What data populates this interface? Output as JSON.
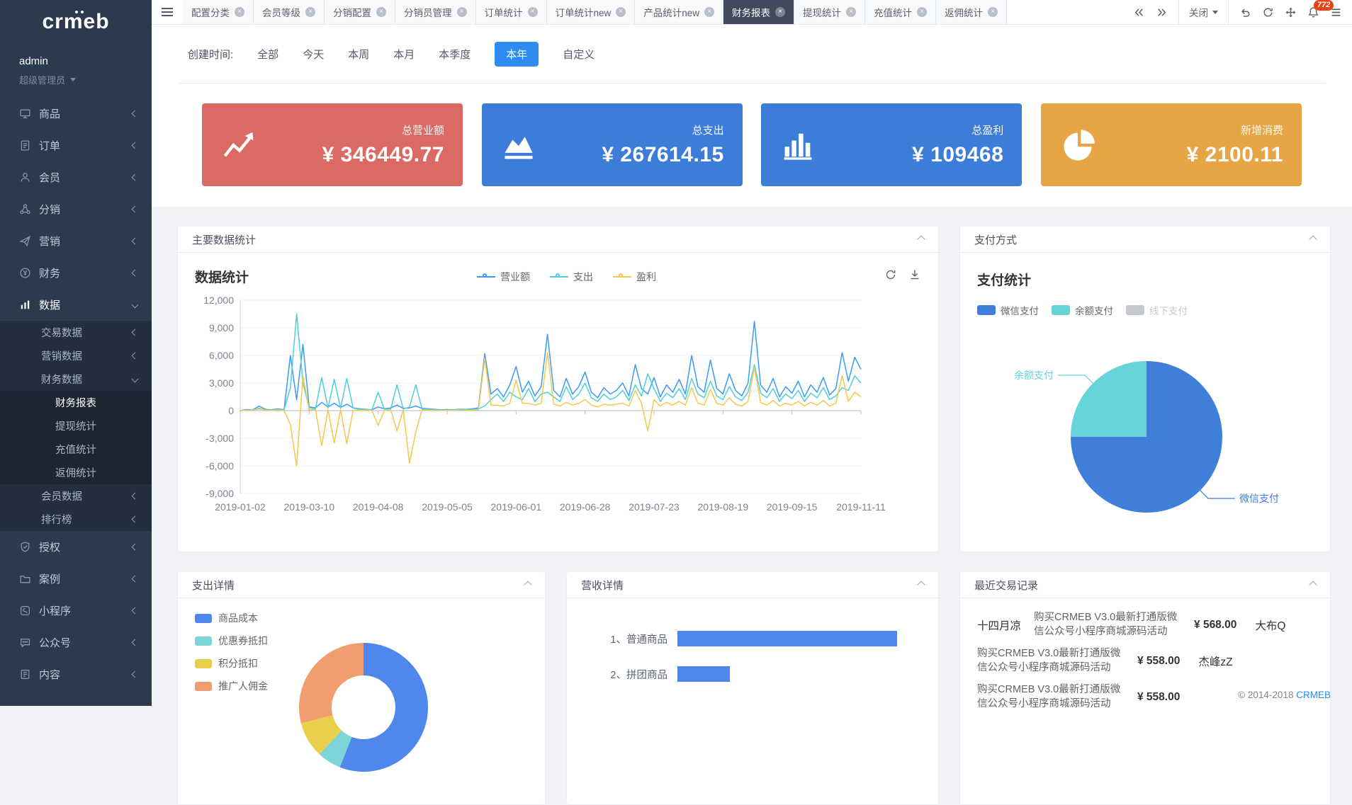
{
  "sidebar": {
    "logo": "crmeb",
    "user": {
      "name": "admin",
      "role": "超级管理员"
    },
    "menu": [
      {
        "label": "商品",
        "icon": "goods-icon",
        "arrow": true
      },
      {
        "label": "订单",
        "icon": "order-icon",
        "arrow": true
      },
      {
        "label": "会员",
        "icon": "member-icon",
        "arrow": true
      },
      {
        "label": "分销",
        "icon": "distribution-icon",
        "arrow": true
      },
      {
        "label": "营销",
        "icon": "marketing-icon",
        "arrow": true
      },
      {
        "label": "财务",
        "icon": "finance-icon",
        "arrow": true
      },
      {
        "label": "数据",
        "icon": "data-icon",
        "arrow": true,
        "active": true,
        "expanded": true,
        "children": [
          {
            "label": "交易数据",
            "arrow": true
          },
          {
            "label": "营销数据",
            "arrow": true
          },
          {
            "label": "财务数据",
            "arrow": true,
            "expanded": true,
            "children": [
              {
                "label": "财务报表",
                "active": true
              },
              {
                "label": "提现统计"
              },
              {
                "label": "充值统计"
              },
              {
                "label": "返佣统计"
              }
            ]
          },
          {
            "label": "会员数据",
            "arrow": true
          },
          {
            "label": "排行榜",
            "arrow": true
          }
        ]
      },
      {
        "label": "授权",
        "icon": "auth-icon",
        "arrow": true
      },
      {
        "label": "案例",
        "icon": "case-icon",
        "arrow": true
      },
      {
        "label": "小程序",
        "icon": "miniprogram-icon",
        "arrow": true
      },
      {
        "label": "公众号",
        "icon": "wechat-icon",
        "arrow": true
      },
      {
        "label": "内容",
        "icon": "content-icon",
        "arrow": true
      }
    ]
  },
  "tabbar": {
    "tabs": [
      {
        "label": "配置分类"
      },
      {
        "label": "会员等级"
      },
      {
        "label": "分销配置"
      },
      {
        "label": "分销员管理"
      },
      {
        "label": "订单统计"
      },
      {
        "label": "订单统计new"
      },
      {
        "label": "产品统计new"
      },
      {
        "label": "财务报表",
        "active": true
      },
      {
        "label": "提现统计"
      },
      {
        "label": "充值统计"
      },
      {
        "label": "返佣统计"
      }
    ],
    "close_label": "关闭",
    "badge": "772",
    "controls": [
      "double-left-arrow-icon",
      "double-right-arrow-icon",
      "close-dropdown",
      "undo-icon",
      "refresh-icon",
      "fullscreen-icon",
      "bell-icon",
      "list-icon"
    ]
  },
  "filters": {
    "label": "创建时间:",
    "options": [
      "全部",
      "今天",
      "本周",
      "本月",
      "本季度",
      "本年",
      "自定义"
    ],
    "active": "本年"
  },
  "stat_cards": [
    {
      "label": "总营业额",
      "value": "¥ 346449.77",
      "color": "#db6a64",
      "icon": "trend-line-icon"
    },
    {
      "label": "总支出",
      "value": "¥ 267614.15",
      "color": "#3d7dda",
      "icon": "area-chart-icon"
    },
    {
      "label": "总盈利",
      "value": "¥ 109468",
      "color": "#3d7dda",
      "icon": "bar-chart-icon"
    },
    {
      "label": "新增消费",
      "value": "¥ 2100.11",
      "color": "#e8a545",
      "icon": "pie-chart-icon"
    }
  ],
  "panels": {
    "main": {
      "title": "主要数据统计",
      "tools": [
        "refresh-icon",
        "download-icon"
      ]
    },
    "payment": {
      "title": "支付方式"
    },
    "expense": {
      "title": "支出详情"
    },
    "revenue": {
      "title": "营收详情"
    },
    "transactions": {
      "title": "最近交易记录",
      "items": [
        {
          "name": "十四月凉",
          "desc": "购买CRMEB V3.0最新打通版微信公众号小程序商城源码活动",
          "price": "¥ 568.00"
        },
        {
          "name": "大布Q",
          "desc": "购买CRMEB V3.0最新打通版微信公众号小程序商城源码活动",
          "price": "¥ 558.00"
        },
        {
          "name": "杰峰zZ",
          "desc": "购买CRMEB V3.0最新打通版微信公众号小程序商城源码活动",
          "price": "¥ 558.00"
        }
      ]
    }
  },
  "chart_data": [
    {
      "id": "data-statistics",
      "type": "line",
      "title": "数据统计",
      "legend_position": "top",
      "ylim": [
        -9000,
        12000
      ],
      "y_ticks": [
        12000,
        9000,
        6000,
        3000,
        0,
        -3000,
        -6000,
        -9000
      ],
      "x_labels": [
        "2019-01-02",
        "2019-03-10",
        "2019-04-08",
        "2019-05-05",
        "2019-06-01",
        "2019-06-28",
        "2019-07-23",
        "2019-08-19",
        "2019-09-15",
        "2019-11-11"
      ],
      "series": [
        {
          "name": "营业额",
          "color": "#3b9bf5",
          "values": [
            0,
            120,
            80,
            500,
            150,
            90,
            200,
            100,
            6000,
            1200,
            7200,
            400,
            300,
            900,
            400,
            800,
            350,
            700,
            300,
            200,
            150,
            100,
            400,
            200,
            300,
            600,
            250,
            300,
            500,
            250,
            200,
            150,
            100,
            120,
            100,
            150,
            120,
            200,
            300,
            6200,
            1800,
            2400,
            1500,
            2800,
            4800,
            2000,
            3200,
            1600,
            2600,
            8300,
            2200,
            1500,
            3500,
            1800,
            2600,
            4200,
            2000,
            1400,
            2500,
            1800,
            2200,
            3000,
            1600,
            5000,
            2400,
            1800,
            3600,
            1500,
            2800,
            2000,
            3400,
            1800,
            6000,
            2600,
            2000,
            5500,
            2400,
            1800,
            4000,
            2200,
            1600,
            3000,
            9700,
            2800,
            2000,
            3500,
            1500,
            2600,
            1900,
            3200,
            1500,
            2800,
            2000,
            3600,
            1700,
            2400,
            6300,
            3200,
            5800,
            4500
          ]
        },
        {
          "name": "支出",
          "color": "#4ed0da",
          "values": [
            0,
            80,
            60,
            200,
            100,
            60,
            120,
            80,
            2500,
            10500,
            3000,
            300,
            200,
            3600,
            300,
            3400,
            250,
            3500,
            280,
            150,
            100,
            80,
            2000,
            150,
            200,
            2800,
            180,
            400,
            2800,
            180,
            150,
            100,
            80,
            90,
            80,
            100,
            90,
            150,
            200,
            500,
            1200,
            1800,
            1000,
            2000,
            1500,
            1200,
            2400,
            1000,
            1800,
            2000,
            1500,
            1000,
            2600,
            1200,
            1800,
            3000,
            1400,
            1000,
            1800,
            1200,
            1500,
            2200,
            1100,
            2800,
            1600,
            4000,
            2400,
            1000,
            1900,
            1400,
            2400,
            1200,
            3500,
            1800,
            1400,
            3200,
            1600,
            1200,
            2600,
            1500,
            1100,
            2000,
            5000,
            1900,
            1400,
            2400,
            1000,
            1800,
            1300,
            2200,
            1000,
            1900,
            1400,
            2500,
            1200,
            1600,
            2500,
            2200,
            3800,
            3000
          ]
        },
        {
          "name": "盈利",
          "color": "#f2c94c",
          "values": [
            0,
            40,
            20,
            300,
            50,
            30,
            80,
            20,
            -1500,
            -6000,
            3800,
            100,
            100,
            -3800,
            100,
            -3500,
            100,
            -3600,
            20,
            50,
            50,
            20,
            -1600,
            50,
            100,
            -2200,
            70,
            -5700,
            -2300,
            70,
            50,
            50,
            20,
            30,
            20,
            50,
            30,
            50,
            100,
            5700,
            600,
            600,
            500,
            800,
            3300,
            800,
            800,
            600,
            800,
            6300,
            700,
            500,
            900,
            600,
            800,
            1200,
            600,
            400,
            700,
            600,
            700,
            800,
            500,
            2200,
            800,
            -2200,
            1200,
            500,
            900,
            600,
            1000,
            600,
            2500,
            800,
            600,
            2300,
            800,
            600,
            1400,
            700,
            500,
            1000,
            4700,
            900,
            600,
            1100,
            500,
            800,
            600,
            1000,
            500,
            900,
            600,
            1100,
            500,
            800,
            3800,
            1000,
            2000,
            1500
          ]
        }
      ]
    },
    {
      "id": "payment-statistics",
      "type": "pie",
      "title": "支付统计",
      "slices": [
        {
          "name": "微信支付",
          "percent": 75,
          "color": "#3f7fd9"
        },
        {
          "name": "余额支付",
          "percent": 25,
          "color": "#66d3d9"
        },
        {
          "name": "线下支付",
          "percent": 0,
          "color": "#c5c8ce",
          "disabled": true
        }
      ]
    },
    {
      "id": "expense-detail",
      "type": "pie",
      "variant": "donut",
      "title": "支出详情",
      "slices": [
        {
          "name": "商品成本",
          "percent": 56,
          "color": "#5087ec"
        },
        {
          "name": "优惠券抵扣",
          "percent": 6,
          "color": "#7dd5d8"
        },
        {
          "name": "积分抵扣",
          "percent": 9,
          "color": "#e9cf4c"
        },
        {
          "name": "推广人佣金",
          "percent": 29,
          "color": "#f09e6f"
        }
      ]
    },
    {
      "id": "revenue-detail",
      "type": "bar",
      "orientation": "horizontal",
      "title": "营收详情",
      "categories": [
        "1、普通商品",
        "2、拼团商品"
      ],
      "values": [
        100,
        24
      ],
      "values_are_relative": true,
      "bar_color": "#5087ec"
    }
  ],
  "footer": {
    "copyright": "© 2014-2018",
    "brand": "CRMEB"
  }
}
